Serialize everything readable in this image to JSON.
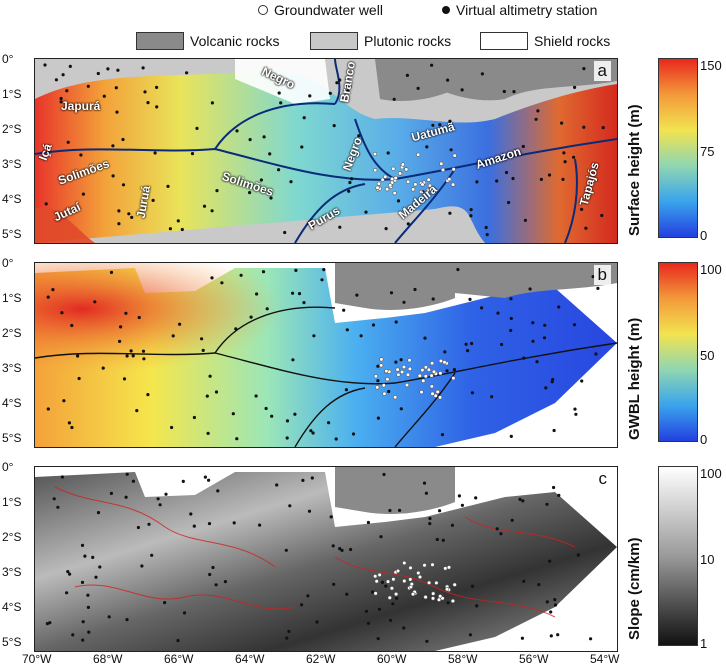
{
  "legend": {
    "well": "Groundwater well",
    "station": "Virtual altimetry station",
    "volcanic": "Volcanic rocks",
    "plutonic": "Plutonic rocks",
    "shield": "Shield rocks",
    "colors": {
      "volcanic": "#8a8a8a",
      "plutonic": "#c8c8c8",
      "shield": "#ffffff"
    }
  },
  "panels": [
    {
      "label": "a",
      "colorbar_title": "Surface height  (m)",
      "ticks": [
        "150",
        "75",
        "0"
      ]
    },
    {
      "label": "b",
      "colorbar_title": "GWBL height  (m)",
      "ticks": [
        "100",
        "50",
        "0"
      ]
    },
    {
      "label": "c",
      "colorbar_title": "Slope  (cm/km)",
      "ticks": [
        "100",
        "10",
        "1"
      ]
    }
  ],
  "lat_labels": [
    "0°",
    "1°S",
    "2°S",
    "3°S",
    "4°S",
    "5°S"
  ],
  "lon_labels": [
    "70°W",
    "68°W",
    "66°W",
    "64°W",
    "62°W",
    "60°W",
    "58°W",
    "56°W",
    "54°W"
  ],
  "rivers": {
    "japura": "Japurá",
    "negro1": "Negro",
    "branco": "Branco",
    "ica": "Içá",
    "solimoes1": "Solimões",
    "jurua": "Juruá",
    "jutai": "Jutaí",
    "solimoes2": "Solimões",
    "purus": "Purus",
    "negro2": "Negro",
    "uatuma": "Uatumã",
    "amazon": "Amazon",
    "madeira": "Madeira",
    "tapajos": "Tapajós"
  }
}
